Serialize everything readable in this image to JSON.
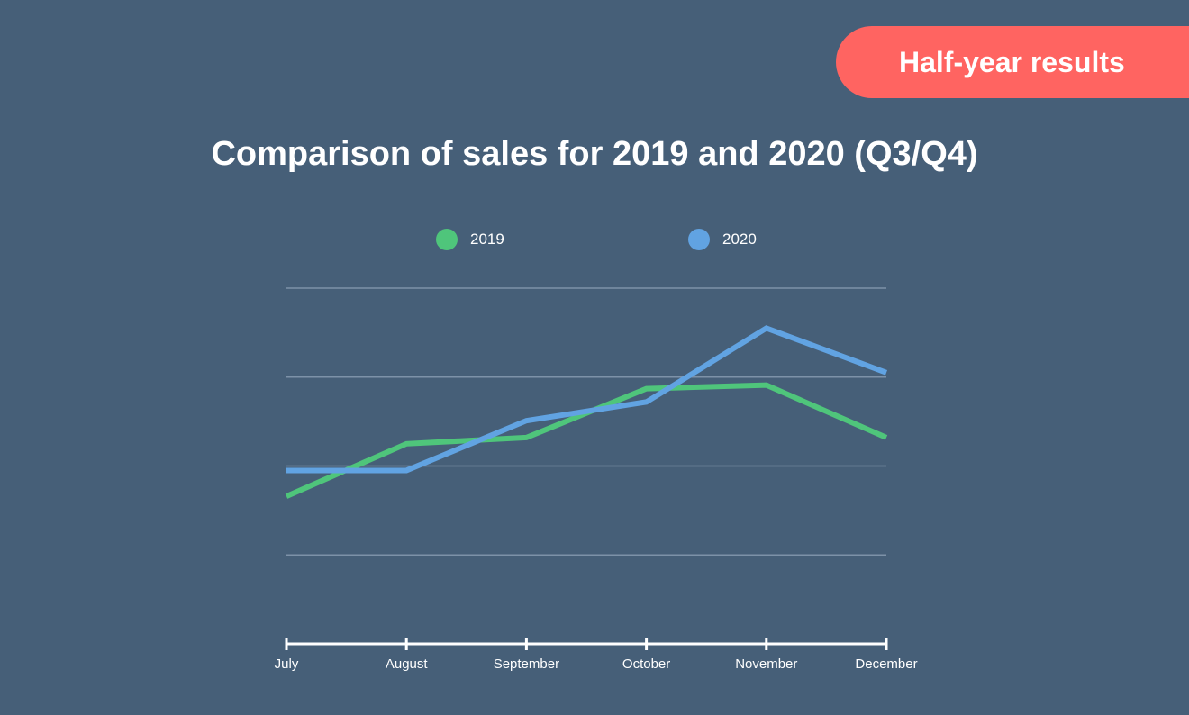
{
  "badge": {
    "label": "Half-year results"
  },
  "chart_data": {
    "type": "line",
    "title": "Comparison of sales for 2019 and 2020 (Q3/Q4)",
    "xlabel": "",
    "ylabel": "",
    "categories": [
      "July",
      "August",
      "September",
      "October",
      "November",
      "December"
    ],
    "series": [
      {
        "name": "2019",
        "color": "#4fc57b",
        "values": [
          1.66,
          2.25,
          2.32,
          2.87,
          2.91,
          2.32
        ]
      },
      {
        "name": "2020",
        "color": "#61a3e2",
        "values": [
          1.95,
          1.95,
          2.51,
          2.72,
          3.55,
          3.05
        ]
      }
    ],
    "ylim": [
      0,
      4
    ],
    "grid": true,
    "legend": "top-center"
  }
}
